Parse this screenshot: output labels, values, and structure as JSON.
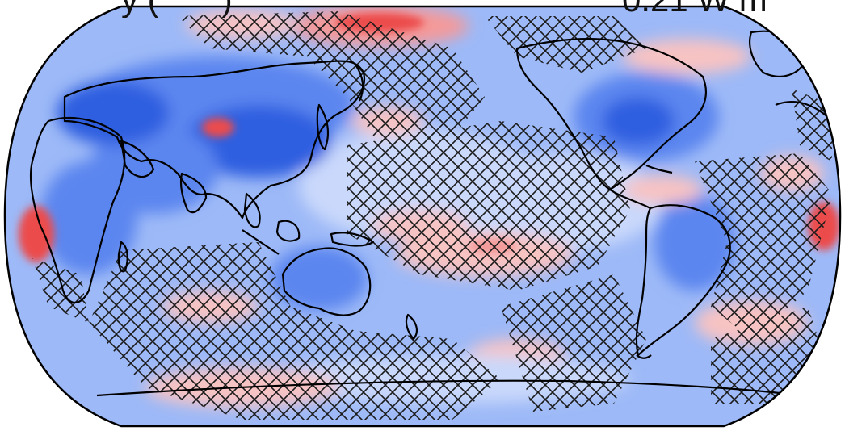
{
  "title": {
    "left_fragment": "y      (              )",
    "right_fragment": "0.21 W m"
  },
  "map": {
    "projection": "Robinson",
    "central_longitude": 180,
    "colormap": "blue-white-red diverging",
    "hatching": "cross-hatch marks non-significant regions",
    "colors": {
      "deep_blue": "#2f5fe0",
      "mid_blue": "#5c86ef",
      "light_blue": "#9db9f7",
      "pale_blue": "#c9d8fb",
      "pale_red": "#f7c3c3",
      "light_red": "#f49a9a",
      "red": "#ec4b4b",
      "coast": "#000000",
      "hatch": "#1a1a1a"
    }
  }
}
